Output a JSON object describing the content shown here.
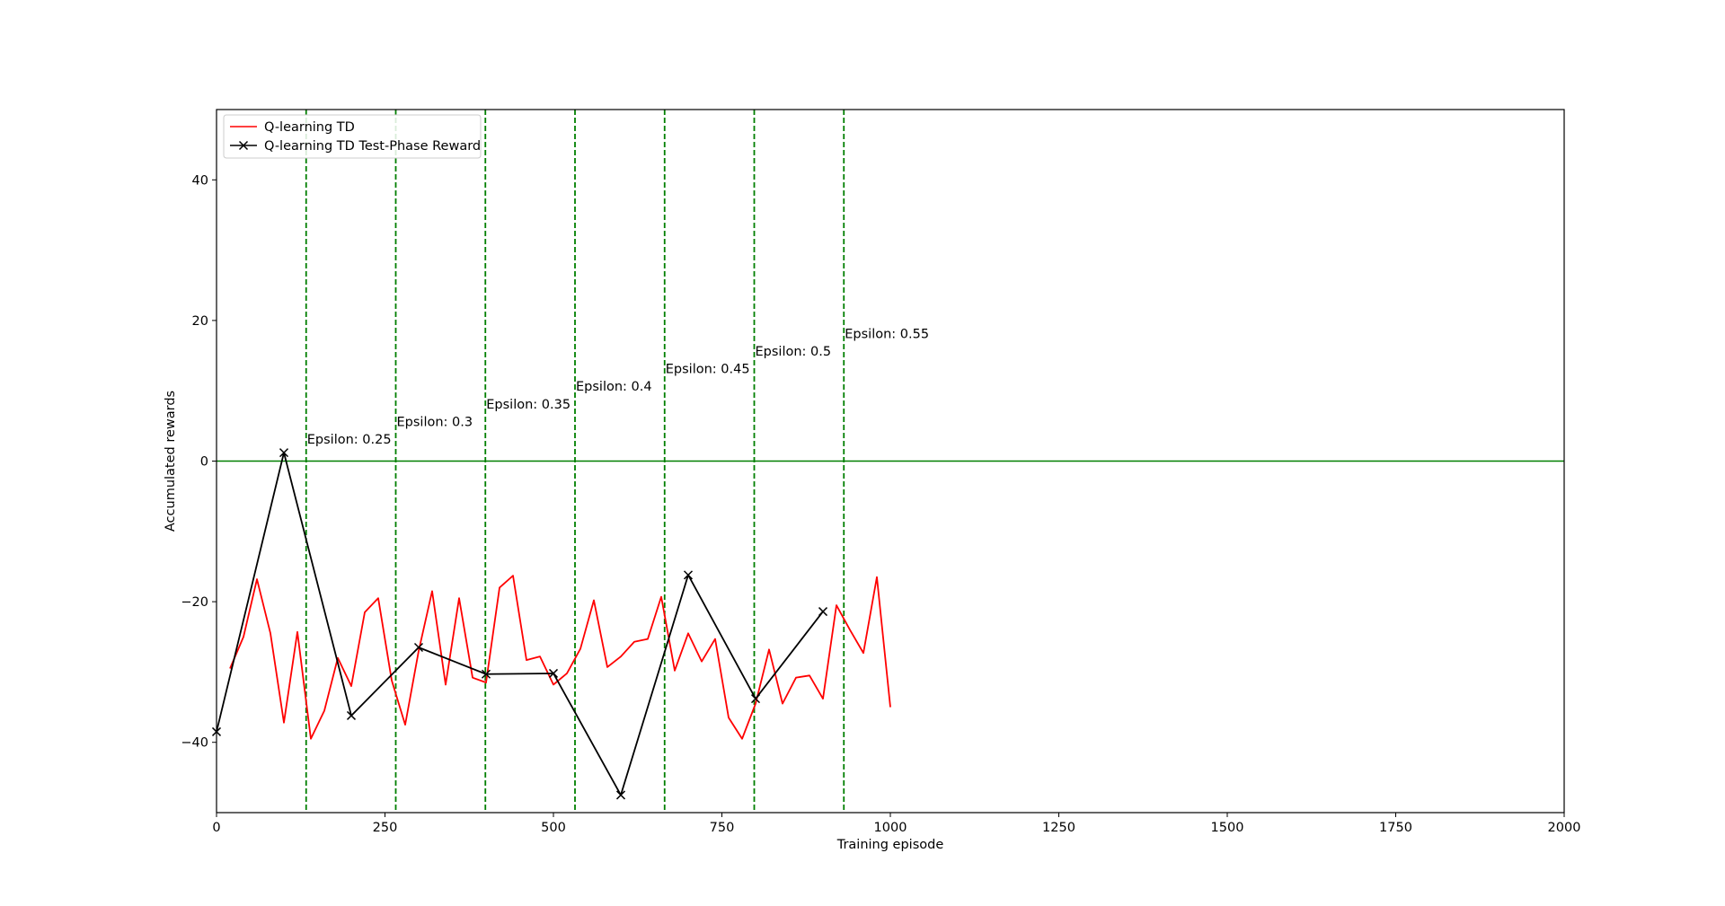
{
  "chart_data": {
    "type": "line",
    "title": "",
    "xlabel": "Training episode",
    "ylabel": "Accumulated rewards",
    "xlim": [
      0,
      2000
    ],
    "ylim": [
      -50,
      50
    ],
    "xticks": [
      0,
      250,
      500,
      750,
      1000,
      1250,
      1500,
      1750,
      2000
    ],
    "yticks": [
      -40,
      -20,
      0,
      20,
      40
    ],
    "grid": false,
    "legend_position": "top-left",
    "series": [
      {
        "name": "Q-learning TD",
        "color": "#ff0000",
        "marker": "none",
        "x": [
          20,
          40,
          60,
          80,
          100,
          120,
          140,
          160,
          180,
          200,
          220,
          240,
          260,
          280,
          300,
          320,
          340,
          360,
          380,
          400,
          420,
          440,
          460,
          480,
          500,
          520,
          540,
          560,
          580,
          600,
          620,
          640,
          660,
          680,
          700,
          720,
          740,
          760,
          780,
          800,
          820,
          840,
          860,
          880,
          900,
          920,
          940,
          960,
          980,
          1000
        ],
        "y": [
          -29.5,
          -25,
          -16.8,
          -24.5,
          -37.2,
          -24.3,
          -39.5,
          -35.5,
          -28,
          -32,
          -21.5,
          -19.5,
          -31.2,
          -37.5,
          -27,
          -18.5,
          -31.8,
          -19.5,
          -30.8,
          -31.5,
          -18,
          -16.3,
          -28.3,
          -27.8,
          -31.8,
          -30.2,
          -26.7,
          -19.8,
          -29.3,
          -27.8,
          -25.7,
          -25.3,
          -19.3,
          -29.8,
          -24.5,
          -28.5,
          -25.3,
          -36.5,
          -39.5,
          -34.5,
          -26.8,
          -34.5,
          -30.8,
          -30.5,
          -33.8,
          -20.5,
          -24,
          -27.3,
          -16.5,
          -35
        ]
      },
      {
        "name": "Q-learning TD Test-Phase Reward",
        "color": "#000000",
        "marker": "x",
        "x": [
          0,
          100,
          200,
          300,
          400,
          500,
          600,
          700,
          800,
          900
        ],
        "y": [
          -38.5,
          1.2,
          -36.2,
          -26.5,
          -30.3,
          -30.2,
          -47.5,
          -16.2,
          -33.8,
          -21.4
        ]
      }
    ],
    "reference_lines": [
      {
        "orientation": "horizontal",
        "value": 0,
        "color": "#007f00",
        "style": "solid"
      }
    ],
    "epsilon_markers": [
      {
        "x": 133,
        "label_y": 2.5,
        "label": "Epsilon: 0.25"
      },
      {
        "x": 266,
        "label_y": 5,
        "label": "Epsilon: 0.3"
      },
      {
        "x": 399,
        "label_y": 7.5,
        "label": "Epsilon: 0.35"
      },
      {
        "x": 532,
        "label_y": 10,
        "label": "Epsilon: 0.4"
      },
      {
        "x": 665,
        "label_y": 12.5,
        "label": "Epsilon: 0.45"
      },
      {
        "x": 798,
        "label_y": 15,
        "label": "Epsilon: 0.5"
      },
      {
        "x": 931,
        "label_y": 17.5,
        "label": "Epsilon: 0.55"
      }
    ],
    "epsilon_line_color": "#007f00"
  }
}
